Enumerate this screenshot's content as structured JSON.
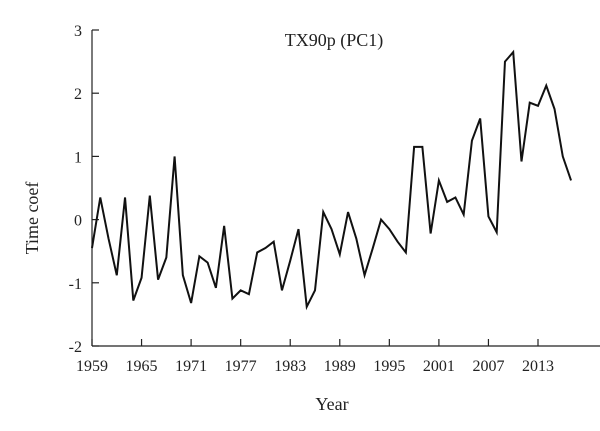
{
  "chart_data": {
    "type": "line",
    "title": "TX90p (PC1)",
    "xlabel": "Year",
    "ylabel": "Time coef",
    "xlim": [
      1959,
      2018
    ],
    "ylim": [
      -2,
      3
    ],
    "x_ticks": [
      1959,
      1965,
      1971,
      1977,
      1983,
      1989,
      1995,
      2001,
      2007,
      2013
    ],
    "y_ticks": [
      -2,
      -1,
      0,
      1,
      2,
      3
    ],
    "x_tick_labels": [
      "1959",
      "1965",
      "1971",
      "1977",
      "1983",
      "1989",
      "1995",
      "2001",
      "2007",
      "2013"
    ],
    "y_tick_labels": [
      "-2",
      "-1",
      "0",
      "1",
      "2",
      "3"
    ],
    "grid": false,
    "series": [
      {
        "x": [
          1959,
          1960,
          1961,
          1962,
          1963,
          1964,
          1965,
          1966,
          1967,
          1968,
          1969,
          1970,
          1971,
          1972,
          1973,
          1974,
          1975,
          1976,
          1977,
          1978,
          1979,
          1980,
          1981,
          1982,
          1983,
          1984,
          1985,
          1986,
          1987,
          1988,
          1989,
          1990,
          1991,
          1992,
          1993,
          1994,
          1995,
          1996,
          1997,
          1998,
          1999,
          2000,
          2001,
          2002,
          2003,
          2004,
          2005,
          2006,
          2007,
          2008,
          2009,
          2010,
          2011,
          2012,
          2013,
          2014,
          2015,
          2016,
          2017
        ],
        "values": [
          -0.45,
          0.35,
          -0.3,
          -0.88,
          0.35,
          -1.28,
          -0.92,
          0.38,
          -0.95,
          -0.6,
          1.0,
          -0.88,
          -1.32,
          -0.58,
          -0.68,
          -1.08,
          -0.1,
          -1.25,
          -1.12,
          -1.18,
          -0.52,
          -0.45,
          -0.35,
          -1.12,
          -0.65,
          -0.15,
          -1.38,
          -1.12,
          0.12,
          -0.15,
          -0.55,
          0.12,
          -0.3,
          -0.88,
          -0.45,
          0.0,
          -0.15,
          -0.35,
          -0.52,
          1.15,
          1.15,
          -0.22,
          0.62,
          0.28,
          0.35,
          0.08,
          1.25,
          1.6,
          0.05,
          -0.2,
          2.5,
          2.65,
          0.92,
          1.85,
          1.8,
          2.12,
          1.75,
          1.0,
          0.62
        ]
      }
    ]
  }
}
